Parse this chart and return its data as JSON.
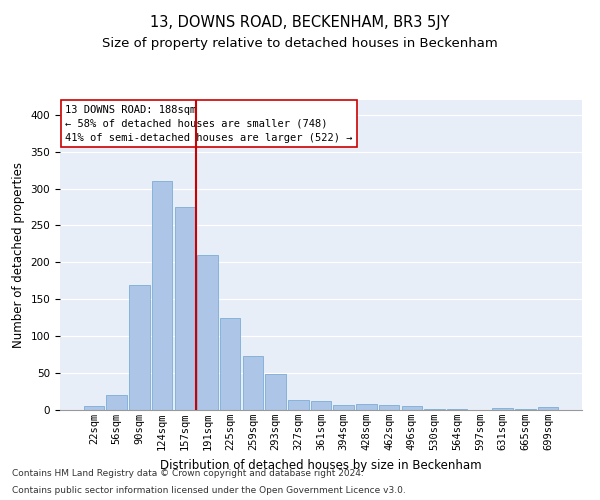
{
  "title": "13, DOWNS ROAD, BECKENHAM, BR3 5JY",
  "subtitle": "Size of property relative to detached houses in Beckenham",
  "xlabel": "Distribution of detached houses by size in Beckenham",
  "ylabel": "Number of detached properties",
  "bar_color": "#adc6e8",
  "bar_edge_color": "#7aadd4",
  "background_color": "#e8eef8",
  "grid_color": "#ffffff",
  "annotation_line_color": "#cc0000",
  "annotation_line1": "13 DOWNS ROAD: 188sqm",
  "annotation_line2": "← 58% of detached houses are smaller (748)",
  "annotation_line3": "41% of semi-detached houses are larger (522) →",
  "annotation_box_color": "#ffffff",
  "annotation_box_edge": "#cc0000",
  "footnote1": "Contains HM Land Registry data © Crown copyright and database right 2024.",
  "footnote2": "Contains public sector information licensed under the Open Government Licence v3.0.",
  "categories": [
    "22sqm",
    "56sqm",
    "90sqm",
    "124sqm",
    "157sqm",
    "191sqm",
    "225sqm",
    "259sqm",
    "293sqm",
    "327sqm",
    "361sqm",
    "394sqm",
    "428sqm",
    "462sqm",
    "496sqm",
    "530sqm",
    "564sqm",
    "597sqm",
    "631sqm",
    "665sqm",
    "699sqm"
  ],
  "values": [
    6,
    20,
    170,
    310,
    275,
    210,
    125,
    73,
    49,
    14,
    12,
    7,
    8,
    7,
    5,
    2,
    1,
    0,
    3,
    1,
    4
  ],
  "vline_x": 4.5,
  "ylim": [
    0,
    420
  ],
  "yticks": [
    0,
    50,
    100,
    150,
    200,
    250,
    300,
    350,
    400
  ],
  "title_fontsize": 10.5,
  "subtitle_fontsize": 9.5,
  "tick_fontsize": 7.5,
  "ylabel_fontsize": 8.5,
  "xlabel_fontsize": 8.5,
  "annotation_fontsize": 7.5,
  "footnote_fontsize": 6.5
}
